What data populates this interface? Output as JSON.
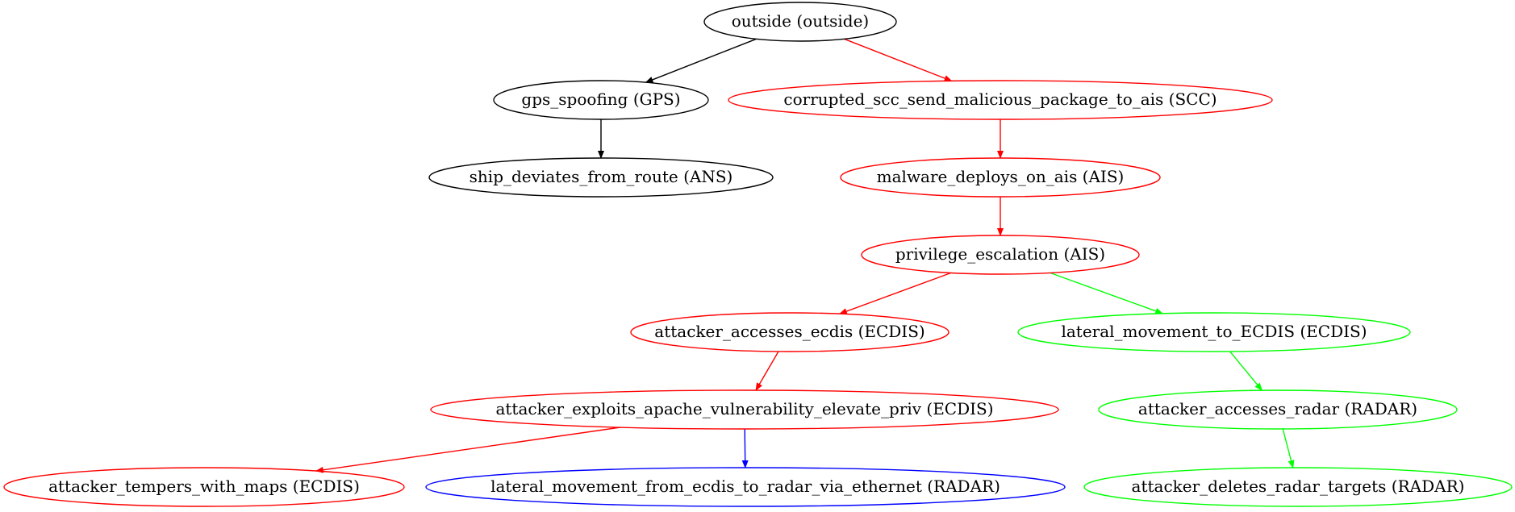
{
  "nodes": [
    {
      "id": "outside",
      "label": "outside (outside)",
      "color": "#000000"
    },
    {
      "id": "gps_spoofing",
      "label": "gps_spoofing (GPS)",
      "color": "#000000"
    },
    {
      "id": "corrupted_scc",
      "label": "corrupted_scc_send_malicious_package_to_ais (SCC)",
      "color": "#ff0000"
    },
    {
      "id": "ship_deviates",
      "label": "ship_deviates_from_route (ANS)",
      "color": "#000000"
    },
    {
      "id": "malware_deploys",
      "label": "malware_deploys_on_ais (AIS)",
      "color": "#ff0000"
    },
    {
      "id": "privilege_escalation",
      "label": "privilege_escalation (AIS)",
      "color": "#ff0000"
    },
    {
      "id": "accesses_ecdis",
      "label": "attacker_accesses_ecdis (ECDIS)",
      "color": "#ff0000"
    },
    {
      "id": "lateral_to_ecdis",
      "label": "lateral_movement_to_ECDIS (ECDIS)",
      "color": "#00ff00"
    },
    {
      "id": "exploits_apache",
      "label": "attacker_exploits_apache_vulnerability_elevate_priv (ECDIS)",
      "color": "#ff0000"
    },
    {
      "id": "accesses_radar",
      "label": "attacker_accesses_radar (RADAR)",
      "color": "#00ff00"
    },
    {
      "id": "tempers_maps",
      "label": "attacker_tempers_with_maps (ECDIS)",
      "color": "#ff0000"
    },
    {
      "id": "lateral_ecdis_radar",
      "label": "lateral_movement_from_ecdis_to_radar_via_ethernet (RADAR)",
      "color": "#0000ff"
    },
    {
      "id": "deletes_targets",
      "label": "attacker_deletes_radar_targets (RADAR)",
      "color": "#00ff00"
    }
  ],
  "edges": [
    {
      "from": "outside",
      "to": "gps_spoofing",
      "color": "#000000"
    },
    {
      "from": "outside",
      "to": "corrupted_scc",
      "color": "#ff0000"
    },
    {
      "from": "gps_spoofing",
      "to": "ship_deviates",
      "color": "#000000"
    },
    {
      "from": "corrupted_scc",
      "to": "malware_deploys",
      "color": "#ff0000"
    },
    {
      "from": "malware_deploys",
      "to": "privilege_escalation",
      "color": "#ff0000"
    },
    {
      "from": "privilege_escalation",
      "to": "accesses_ecdis",
      "color": "#ff0000"
    },
    {
      "from": "privilege_escalation",
      "to": "lateral_to_ecdis",
      "color": "#00ff00"
    },
    {
      "from": "accesses_ecdis",
      "to": "exploits_apache",
      "color": "#ff0000"
    },
    {
      "from": "lateral_to_ecdis",
      "to": "accesses_radar",
      "color": "#00ff00"
    },
    {
      "from": "exploits_apache",
      "to": "tempers_maps",
      "color": "#ff0000"
    },
    {
      "from": "exploits_apache",
      "to": "lateral_ecdis_radar",
      "color": "#0000ff"
    },
    {
      "from": "accesses_radar",
      "to": "deletes_targets",
      "color": "#00ff00"
    }
  ]
}
